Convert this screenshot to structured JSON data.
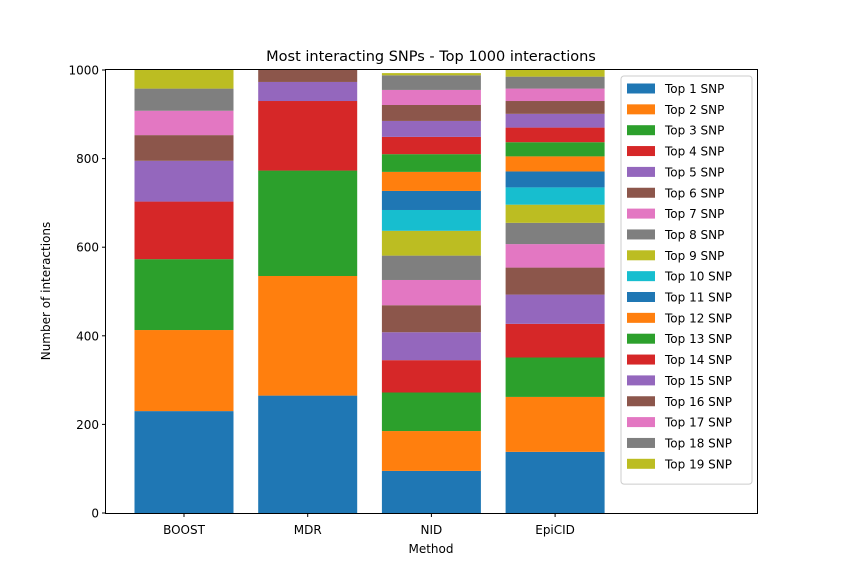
{
  "chart_data": {
    "type": "bar",
    "stacked": true,
    "title": "Most interacting SNPs - Top 1000 interactions",
    "xlabel": "Method",
    "ylabel": "Number of interactions",
    "categories": [
      "BOOST",
      "MDR",
      "NID",
      "EpiCID"
    ],
    "ylim": [
      0,
      1000
    ],
    "yticks": [
      0,
      200,
      400,
      600,
      800,
      1000
    ],
    "grid": false,
    "legend_position": "upper-right",
    "series": [
      {
        "name": "Top 1 SNP",
        "color": "#1f77b4",
        "values": [
          230,
          265,
          95,
          138
        ]
      },
      {
        "name": "Top 2 SNP",
        "color": "#ff7f0e",
        "values": [
          183,
          270,
          90,
          124
        ]
      },
      {
        "name": "Top 3 SNP",
        "color": "#2ca02c",
        "values": [
          160,
          238,
          87,
          89
        ]
      },
      {
        "name": "Top 4 SNP",
        "color": "#d62728",
        "values": [
          130,
          157,
          73,
          76
        ]
      },
      {
        "name": "Top 5 SNP",
        "color": "#9467bd",
        "values": [
          92,
          43,
          63,
          66
        ]
      },
      {
        "name": "Top 6 SNP",
        "color": "#8c564b",
        "values": [
          58,
          27,
          61,
          61
        ]
      },
      {
        "name": "Top 7 SNP",
        "color": "#e377c2",
        "values": [
          55,
          0,
          57,
          53
        ]
      },
      {
        "name": "Top 8 SNP",
        "color": "#7f7f7f",
        "values": [
          50,
          0,
          55,
          48
        ]
      },
      {
        "name": "Top 9 SNP",
        "color": "#bcbd22",
        "values": [
          42,
          0,
          56,
          41
        ]
      },
      {
        "name": "Top 10 SNP",
        "color": "#17becf",
        "values": [
          0,
          0,
          47,
          39
        ]
      },
      {
        "name": "Top 11 SNP",
        "color": "#1f77b4",
        "values": [
          0,
          0,
          43,
          36
        ]
      },
      {
        "name": "Top 12 SNP",
        "color": "#ff7f0e",
        "values": [
          0,
          0,
          43,
          34
        ]
      },
      {
        "name": "Top 13 SNP",
        "color": "#2ca02c",
        "values": [
          0,
          0,
          40,
          32
        ]
      },
      {
        "name": "Top 14 SNP",
        "color": "#d62728",
        "values": [
          0,
          0,
          39,
          33
        ]
      },
      {
        "name": "Top 15 SNP",
        "color": "#9467bd",
        "values": [
          0,
          0,
          36,
          31
        ]
      },
      {
        "name": "Top 16 SNP",
        "color": "#8c564b",
        "values": [
          0,
          0,
          36,
          29
        ]
      },
      {
        "name": "Top 17 SNP",
        "color": "#e377c2",
        "values": [
          0,
          0,
          34,
          28
        ]
      },
      {
        "name": "Top 18 SNP",
        "color": "#7f7f7f",
        "values": [
          0,
          0,
          33,
          27
        ]
      },
      {
        "name": "Top 19 SNP",
        "color": "#bcbd22",
        "values": [
          0,
          0,
          5,
          15
        ]
      }
    ]
  }
}
